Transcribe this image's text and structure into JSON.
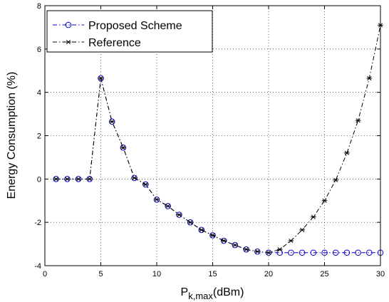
{
  "chart_data": {
    "type": "line",
    "title": "",
    "xlabel": "P",
    "xlabel_subscript": "k,max",
    "xlabel_unit": "(dBm)",
    "ylabel": "Energy Consumption (%)",
    "xlim": [
      0,
      30
    ],
    "ylim": [
      -4,
      8
    ],
    "xticks": [
      0,
      5,
      10,
      15,
      20,
      25,
      30
    ],
    "yticks": [
      -4,
      -2,
      0,
      2,
      4,
      6,
      8
    ],
    "grid": true,
    "legend_position": "top-left",
    "x": [
      1,
      2,
      3,
      4,
      5,
      6,
      7,
      8,
      9,
      10,
      11,
      12,
      13,
      14,
      15,
      16,
      17,
      18,
      19,
      20,
      21,
      22,
      23,
      24,
      25,
      26,
      27,
      28,
      29,
      30
    ],
    "series": [
      {
        "name": "Proposed Scheme",
        "color": "#0000cc",
        "marker": "circle",
        "line_style": "dash-dot",
        "values": [
          0,
          0,
          0,
          0,
          4.65,
          2.65,
          1.45,
          0.05,
          -0.25,
          -0.95,
          -1.25,
          -1.65,
          -2.0,
          -2.35,
          -2.6,
          -2.85,
          -3.05,
          -3.25,
          -3.35,
          -3.4,
          -3.4,
          -3.4,
          -3.4,
          -3.4,
          -3.4,
          -3.4,
          -3.4,
          -3.4,
          -3.4,
          -3.4
        ]
      },
      {
        "name": "Reference",
        "color": "#000000",
        "marker": "star",
        "line_style": "dash-dot",
        "values": [
          0,
          0,
          0,
          0,
          4.65,
          2.65,
          1.45,
          0.05,
          -0.25,
          -0.95,
          -1.25,
          -1.65,
          -2.0,
          -2.35,
          -2.6,
          -2.85,
          -3.05,
          -3.25,
          -3.35,
          -3.4,
          -3.25,
          -2.85,
          -2.35,
          -1.75,
          -1.0,
          -0.05,
          1.2,
          2.7,
          4.65,
          7.1
        ]
      }
    ]
  }
}
